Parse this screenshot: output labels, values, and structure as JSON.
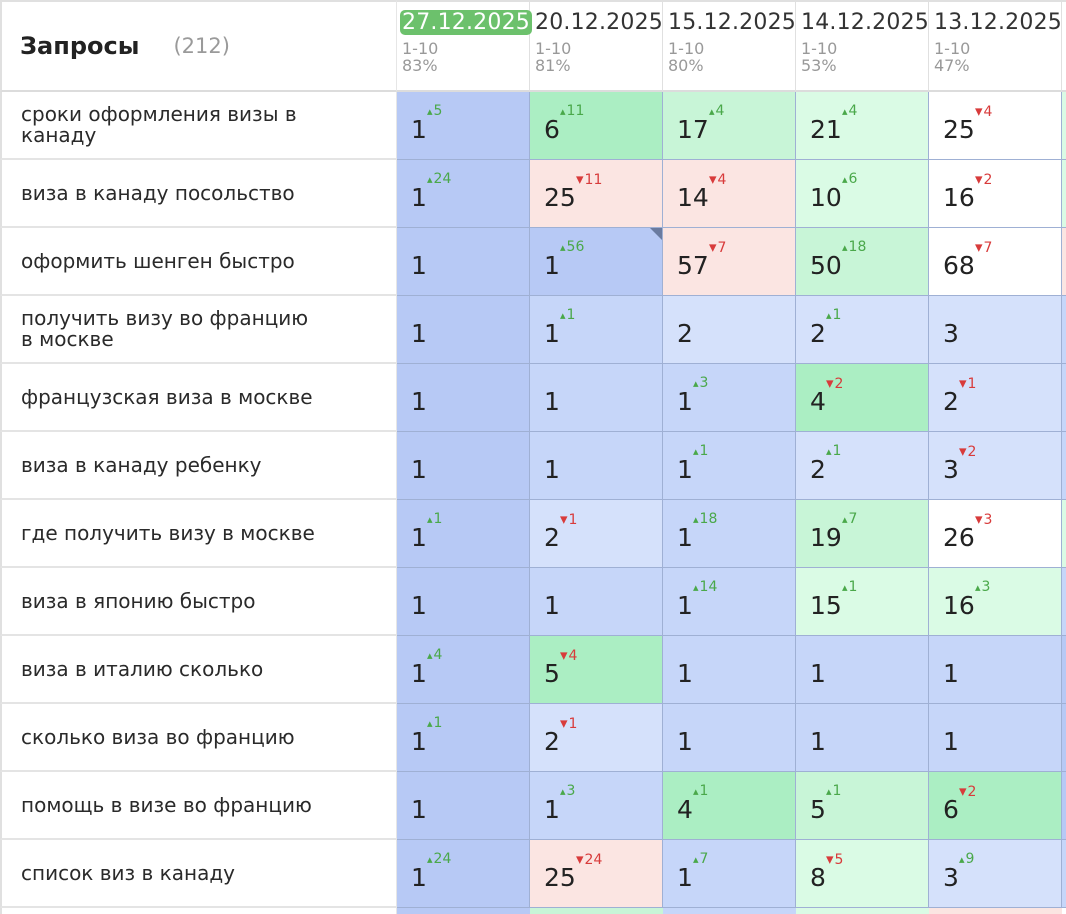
{
  "header": {
    "title": "Запросы",
    "count": "(212)"
  },
  "dates": [
    {
      "date": "27.12.2025",
      "range": "1-10",
      "pct": "83%",
      "active": true
    },
    {
      "date": "20.12.2025",
      "range": "1-10",
      "pct": "81%",
      "active": false
    },
    {
      "date": "15.12.2025",
      "range": "1-10",
      "pct": "80%",
      "active": false
    },
    {
      "date": "14.12.2025",
      "range": "1-10",
      "pct": "53%",
      "active": false
    },
    {
      "date": "13.12.2025",
      "range": "1-10",
      "pct": "47%",
      "active": false
    }
  ],
  "rows": [
    {
      "query": [
        "сроки оформления визы в",
        "канаду"
      ],
      "cells": [
        {
          "v": "1",
          "d": "5",
          "dir": "up",
          "c": "b1"
        },
        {
          "v": "6",
          "d": "11",
          "dir": "up",
          "c": "g1"
        },
        {
          "v": "17",
          "d": "4",
          "dir": "up",
          "c": "g2"
        },
        {
          "v": "21",
          "d": "4",
          "dir": "up",
          "c": "g3"
        },
        {
          "v": "25",
          "d": "4",
          "dir": "down",
          "c": "w"
        }
      ],
      "edge": "g3"
    },
    {
      "query": [
        "виза в канаду посольство"
      ],
      "cells": [
        {
          "v": "1",
          "d": "24",
          "dir": "up",
          "c": "b1"
        },
        {
          "v": "25",
          "d": "11",
          "dir": "down",
          "c": "r1"
        },
        {
          "v": "14",
          "d": "4",
          "dir": "down",
          "c": "r1"
        },
        {
          "v": "10",
          "d": "6",
          "dir": "up",
          "c": "g3"
        },
        {
          "v": "16",
          "d": "2",
          "dir": "down",
          "c": "w"
        }
      ],
      "edge": "g3"
    },
    {
      "query": [
        "оформить шенген быстро"
      ],
      "cells": [
        {
          "v": "1",
          "d": "",
          "dir": "",
          "c": "b1"
        },
        {
          "v": "1",
          "d": "56",
          "dir": "up",
          "c": "b1",
          "mark": true
        },
        {
          "v": "57",
          "d": "7",
          "dir": "down",
          "c": "r1"
        },
        {
          "v": "50",
          "d": "18",
          "dir": "up",
          "c": "g2"
        },
        {
          "v": "68",
          "d": "7",
          "dir": "down",
          "c": "w"
        }
      ],
      "edge": "r1"
    },
    {
      "query": [
        "получить визу во францию",
        "в москве"
      ],
      "cells": [
        {
          "v": "1",
          "d": "",
          "dir": "",
          "c": "b1"
        },
        {
          "v": "1",
          "d": "1",
          "dir": "up",
          "c": "b2"
        },
        {
          "v": "2",
          "d": "",
          "dir": "",
          "c": "b3"
        },
        {
          "v": "2",
          "d": "1",
          "dir": "up",
          "c": "b3"
        },
        {
          "v": "3",
          "d": "",
          "dir": "",
          "c": "b3"
        }
      ],
      "edge": "b2"
    },
    {
      "query": [
        "французская виза в москве"
      ],
      "cells": [
        {
          "v": "1",
          "d": "",
          "dir": "",
          "c": "b1"
        },
        {
          "v": "1",
          "d": "",
          "dir": "",
          "c": "b2"
        },
        {
          "v": "1",
          "d": "3",
          "dir": "up",
          "c": "b2"
        },
        {
          "v": "4",
          "d": "2",
          "dir": "down",
          "c": "g1"
        },
        {
          "v": "2",
          "d": "1",
          "dir": "down",
          "c": "b3"
        }
      ],
      "edge": "b2"
    },
    {
      "query": [
        "виза в канаду ребенку"
      ],
      "cells": [
        {
          "v": "1",
          "d": "",
          "dir": "",
          "c": "b1"
        },
        {
          "v": "1",
          "d": "",
          "dir": "",
          "c": "b2"
        },
        {
          "v": "1",
          "d": "1",
          "dir": "up",
          "c": "b2"
        },
        {
          "v": "2",
          "d": "1",
          "dir": "up",
          "c": "b3"
        },
        {
          "v": "3",
          "d": "2",
          "dir": "down",
          "c": "b3"
        }
      ],
      "edge": "b2"
    },
    {
      "query": [
        "где получить визу в москве"
      ],
      "cells": [
        {
          "v": "1",
          "d": "1",
          "dir": "up",
          "c": "b1"
        },
        {
          "v": "2",
          "d": "1",
          "dir": "down",
          "c": "b3"
        },
        {
          "v": "1",
          "d": "18",
          "dir": "up",
          "c": "b2"
        },
        {
          "v": "19",
          "d": "7",
          "dir": "up",
          "c": "g2"
        },
        {
          "v": "26",
          "d": "3",
          "dir": "down",
          "c": "w"
        }
      ],
      "edge": "g3"
    },
    {
      "query": [
        "виза в японию быстро"
      ],
      "cells": [
        {
          "v": "1",
          "d": "",
          "dir": "",
          "c": "b1"
        },
        {
          "v": "1",
          "d": "",
          "dir": "",
          "c": "b2"
        },
        {
          "v": "1",
          "d": "14",
          "dir": "up",
          "c": "b2"
        },
        {
          "v": "15",
          "d": "1",
          "dir": "up",
          "c": "g3"
        },
        {
          "v": "16",
          "d": "3",
          "dir": "up",
          "c": "g3"
        }
      ],
      "edge": "b2"
    },
    {
      "query": [
        "виза в италию сколько"
      ],
      "cells": [
        {
          "v": "1",
          "d": "4",
          "dir": "up",
          "c": "b1"
        },
        {
          "v": "5",
          "d": "4",
          "dir": "down",
          "c": "g1"
        },
        {
          "v": "1",
          "d": "",
          "dir": "",
          "c": "b2"
        },
        {
          "v": "1",
          "d": "",
          "dir": "",
          "c": "b2"
        },
        {
          "v": "1",
          "d": "",
          "dir": "",
          "c": "b2"
        }
      ],
      "edge": "b1"
    },
    {
      "query": [
        "сколько виза во францию"
      ],
      "cells": [
        {
          "v": "1",
          "d": "1",
          "dir": "up",
          "c": "b1"
        },
        {
          "v": "2",
          "d": "1",
          "dir": "down",
          "c": "b3"
        },
        {
          "v": "1",
          "d": "",
          "dir": "",
          "c": "b2"
        },
        {
          "v": "1",
          "d": "",
          "dir": "",
          "c": "b2"
        },
        {
          "v": "1",
          "d": "",
          "dir": "",
          "c": "b2"
        }
      ],
      "edge": "b1"
    },
    {
      "query": [
        "помощь в визе во францию"
      ],
      "cells": [
        {
          "v": "1",
          "d": "",
          "dir": "",
          "c": "b1"
        },
        {
          "v": "1",
          "d": "3",
          "dir": "up",
          "c": "b2"
        },
        {
          "v": "4",
          "d": "1",
          "dir": "up",
          "c": "g1"
        },
        {
          "v": "5",
          "d": "1",
          "dir": "up",
          "c": "g2"
        },
        {
          "v": "6",
          "d": "2",
          "dir": "down",
          "c": "g1"
        }
      ],
      "edge": "b1"
    },
    {
      "query": [
        "список виз в канаду"
      ],
      "cells": [
        {
          "v": "1",
          "d": "24",
          "dir": "up",
          "c": "b1"
        },
        {
          "v": "25",
          "d": "24",
          "dir": "down",
          "c": "r1"
        },
        {
          "v": "1",
          "d": "7",
          "dir": "up",
          "c": "b2"
        },
        {
          "v": "8",
          "d": "5",
          "dir": "down",
          "c": "g3"
        },
        {
          "v": "3",
          "d": "9",
          "dir": "up",
          "c": "b3"
        }
      ],
      "edge": "b2"
    }
  ],
  "bottom_strip": [
    "b1",
    "g2",
    "b2",
    "g3",
    "r1"
  ]
}
